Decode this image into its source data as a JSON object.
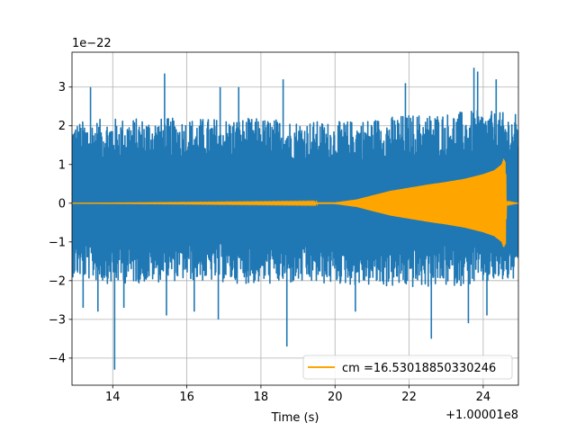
{
  "chart_data": {
    "type": "line",
    "title": "",
    "xlabel": "Time (s)",
    "ylabel": "",
    "x_offset_label": "+1.00001e8",
    "y_scale_label": "1e−22",
    "xlim": [
      12.9,
      24.95
    ],
    "ylim": [
      -4.7,
      3.9
    ],
    "xticks": [
      14,
      16,
      18,
      20,
      22,
      24
    ],
    "xtick_labels": [
      "14",
      "16",
      "18",
      "20",
      "22",
      "24"
    ],
    "yticks": [
      -4,
      -3,
      -2,
      -1,
      0,
      1,
      2,
      3
    ],
    "ytick_labels": [
      "−4",
      "−3",
      "−2",
      "−1",
      "0",
      "1",
      "2",
      "3"
    ],
    "grid": true,
    "legend_placement": "lower-right",
    "series": [
      {
        "kind": "noise",
        "color": "#1f77b4",
        "envelope_upper": [
          [
            12.9,
            2.1
          ],
          [
            14,
            2.2
          ],
          [
            16,
            2.2
          ],
          [
            18,
            2.2
          ],
          [
            20,
            2.1
          ],
          [
            22,
            2.3
          ],
          [
            24,
            2.4
          ],
          [
            24.95,
            2.3
          ]
        ],
        "envelope_lower": [
          [
            12.9,
            -1.9
          ],
          [
            14,
            -2.1
          ],
          [
            16,
            -2.0
          ],
          [
            18,
            -2.1
          ],
          [
            20,
            -2.1
          ],
          [
            22,
            -2.2
          ],
          [
            24,
            -2.1
          ],
          [
            24.95,
            -2.0
          ]
        ],
        "peaks": [
          [
            13.4,
            3.0
          ],
          [
            15.4,
            3.35
          ],
          [
            16.9,
            3.0
          ],
          [
            17.4,
            3.0
          ],
          [
            18.6,
            3.2
          ],
          [
            21.9,
            3.1
          ],
          [
            23.75,
            3.5
          ],
          [
            23.85,
            3.4
          ],
          [
            24.35,
            3.2
          ]
        ],
        "troughs": [
          [
            13.2,
            -2.7
          ],
          [
            13.6,
            -2.8
          ],
          [
            14.05,
            -4.3
          ],
          [
            14.3,
            -2.7
          ],
          [
            15.45,
            -2.9
          ],
          [
            16.2,
            -2.8
          ],
          [
            16.85,
            -3.0
          ],
          [
            18.7,
            -3.7
          ],
          [
            20.55,
            -2.8
          ],
          [
            22.6,
            -3.5
          ],
          [
            23.6,
            -3.1
          ],
          [
            24.1,
            -2.9
          ]
        ]
      },
      {
        "name": "cm =16.53018850330246",
        "kind": "chirp",
        "color": "#ffa500",
        "envelope": [
          [
            12.9,
            0.0
          ],
          [
            20.0,
            0.02
          ],
          [
            20.6,
            0.1
          ],
          [
            21.0,
            0.2
          ],
          [
            21.5,
            0.32
          ],
          [
            22.0,
            0.4
          ],
          [
            22.5,
            0.48
          ],
          [
            23.0,
            0.55
          ],
          [
            23.5,
            0.63
          ],
          [
            24.0,
            0.75
          ],
          [
            24.3,
            0.85
          ],
          [
            24.5,
            1.0
          ],
          [
            24.55,
            1.15
          ],
          [
            24.6,
            1.05
          ],
          [
            24.63,
            0.02
          ],
          [
            24.95,
            0.0
          ]
        ]
      }
    ]
  }
}
